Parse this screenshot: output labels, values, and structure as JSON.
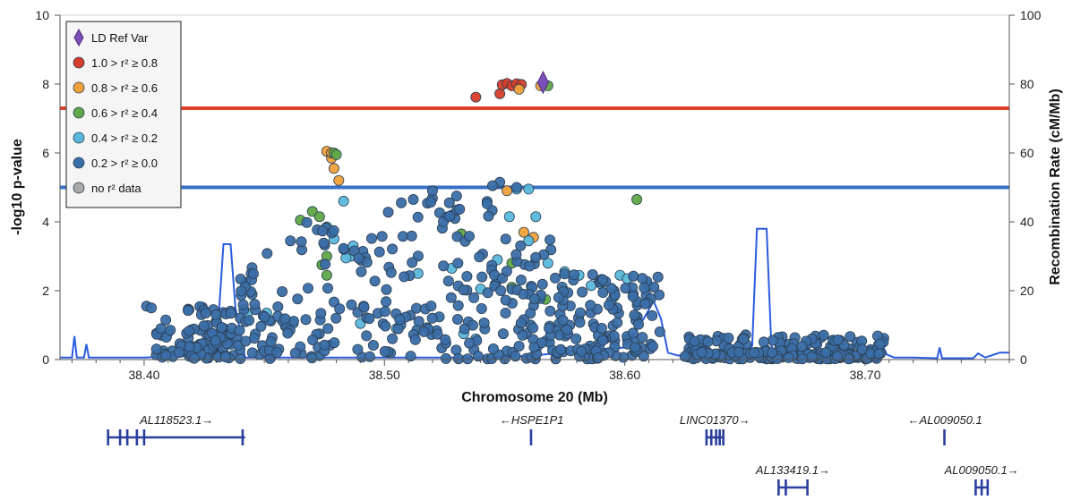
{
  "chart_data": {
    "type": "scatter",
    "xlabel": "Chromosome 20 (Mb)",
    "ylabel": "-log10 p-value",
    "y2label": "Recombination Rate (cM/Mb)",
    "xlim": [
      38.365,
      38.76
    ],
    "ylim": [
      0,
      10
    ],
    "y2lim": [
      0,
      100
    ],
    "x_ticks": [
      "38.40",
      "38.50",
      "38.60",
      "38.70"
    ],
    "x_tick_values": [
      38.4,
      38.5,
      38.6,
      38.7
    ],
    "y_ticks": [
      "0",
      "2",
      "4",
      "6",
      "8",
      "10"
    ],
    "y_tick_values": [
      0,
      2,
      4,
      6,
      8,
      10
    ],
    "y2_ticks": [
      "0",
      "20",
      "40",
      "60",
      "80",
      "100"
    ],
    "y2_tick_values": [
      0,
      20,
      40,
      60,
      80,
      100
    ],
    "thresholds": [
      {
        "value": 7.3,
        "color": "#e0402b"
      },
      {
        "value": 5.0,
        "color": "#3870c8"
      }
    ],
    "legend": {
      "placement": "top-left",
      "items": [
        {
          "label": "LD Ref Var",
          "color": "#7d4fb8",
          "shape": "diamond"
        },
        {
          "label": "1.0 > r² ≥ 0.8",
          "color": "#d43d2a",
          "shape": "circle"
        },
        {
          "label": "0.8 > r² ≥ 0.6",
          "color": "#f0a03a",
          "shape": "circle"
        },
        {
          "label": "0.6 > r² ≥ 0.4",
          "color": "#5fa847",
          "shape": "circle"
        },
        {
          "label": "0.4 > r² ≥ 0.2",
          "color": "#5ab8dc",
          "shape": "circle"
        },
        {
          "label": "0.2 > r² ≥ 0.0",
          "color": "#3a6ea8",
          "shape": "circle"
        },
        {
          "label": "no r² data",
          "color": "#a9a9a9",
          "shape": "circle"
        }
      ]
    },
    "ld_ref_var": {
      "x": 38.566,
      "y": 8.05
    },
    "series": [
      {
        "name": "1.0 > r² ≥ 0.8",
        "color": "#d43d2a",
        "points": [
          [
            38.538,
            7.62
          ],
          [
            38.548,
            7.72
          ],
          [
            38.549,
            7.98
          ],
          [
            38.551,
            8.02
          ],
          [
            38.553,
            7.95
          ],
          [
            38.555,
            8.01
          ],
          [
            38.557,
            7.99
          ]
        ]
      },
      {
        "name": "0.8 > r² ≥ 0.6",
        "color": "#f0a03a",
        "points": [
          [
            38.476,
            6.05
          ],
          [
            38.478,
            5.85
          ],
          [
            38.479,
            5.55
          ],
          [
            38.481,
            5.2
          ],
          [
            38.551,
            4.9
          ],
          [
            38.558,
            3.7
          ],
          [
            38.562,
            3.55
          ],
          [
            38.565,
            7.95
          ],
          [
            38.556,
            7.85
          ],
          [
            38.478,
            6.0
          ]
        ]
      },
      {
        "name": "0.6 > r² ≥ 0.4",
        "color": "#5fa847",
        "points": [
          [
            38.465,
            4.05
          ],
          [
            38.47,
            4.3
          ],
          [
            38.473,
            4.15
          ],
          [
            38.479,
            6.0
          ],
          [
            38.476,
            3.0
          ],
          [
            38.474,
            2.75
          ],
          [
            38.476,
            2.45
          ],
          [
            38.532,
            3.65
          ],
          [
            38.553,
            2.8
          ],
          [
            38.553,
            2.1
          ],
          [
            38.567,
            1.75
          ],
          [
            38.568,
            7.95
          ],
          [
            38.605,
            4.65
          ],
          [
            38.48,
            5.95
          ]
        ]
      },
      {
        "name": "0.4 > r² ≥ 0.2",
        "color": "#5ab8dc",
        "points": [
          [
            38.476,
            3.85
          ],
          [
            38.479,
            3.5
          ],
          [
            38.483,
            4.6
          ],
          [
            38.486,
            3.0
          ],
          [
            38.487,
            3.3
          ],
          [
            38.514,
            2.5
          ],
          [
            38.528,
            2.65
          ],
          [
            38.54,
            2.05
          ],
          [
            38.547,
            2.9
          ],
          [
            38.552,
            4.15
          ],
          [
            38.555,
            4.95
          ],
          [
            38.56,
            4.95
          ],
          [
            38.563,
            4.15
          ],
          [
            38.568,
            2.8
          ],
          [
            38.575,
            2.55
          ],
          [
            38.581,
            2.45
          ],
          [
            38.586,
            2.15
          ],
          [
            38.59,
            2.2
          ],
          [
            38.598,
            2.45
          ],
          [
            38.601,
            2.35
          ],
          [
            38.443,
            1.35
          ],
          [
            38.451,
            1.35
          ],
          [
            38.462,
            1.05
          ],
          [
            38.49,
            1.05
          ],
          [
            38.505,
            0.9
          ],
          [
            38.533,
            0.75
          ],
          [
            38.538,
            0.6
          ],
          [
            38.547,
            2.3
          ],
          [
            38.56,
            3.45
          ],
          [
            38.484,
            2.95
          ]
        ]
      },
      {
        "name": "0.2 > r² ≥ 0.0",
        "color": "#3a6ea8",
        "points": "generated"
      }
    ],
    "recombination_color": "#2a5ce0",
    "recombination_rate": [
      [
        38.365,
        0.6
      ],
      [
        38.37,
        0.6
      ],
      [
        38.371,
        6.8
      ],
      [
        38.372,
        0.6
      ],
      [
        38.375,
        0.6
      ],
      [
        38.376,
        4.5
      ],
      [
        38.377,
        0.6
      ],
      [
        38.4,
        0.6
      ],
      [
        38.43,
        1.5
      ],
      [
        38.433,
        33.5
      ],
      [
        38.436,
        33.5
      ],
      [
        38.438,
        15
      ],
      [
        38.44,
        8
      ],
      [
        38.442,
        0.6
      ],
      [
        38.47,
        0.6
      ],
      [
        38.48,
        0.6
      ],
      [
        38.5,
        0.6
      ],
      [
        38.54,
        0.6
      ],
      [
        38.56,
        1.0
      ],
      [
        38.58,
        2.5
      ],
      [
        38.6,
        3.5
      ],
      [
        38.608,
        12
      ],
      [
        38.612,
        17
      ],
      [
        38.615,
        12
      ],
      [
        38.618,
        2
      ],
      [
        38.622,
        1.2
      ],
      [
        38.63,
        0.8
      ],
      [
        38.65,
        0.8
      ],
      [
        38.653,
        4
      ],
      [
        38.655,
        38
      ],
      [
        38.659,
        38
      ],
      [
        38.661,
        4
      ],
      [
        38.663,
        0.8
      ],
      [
        38.7,
        0.8
      ],
      [
        38.703,
        1.5
      ],
      [
        38.706,
        6
      ],
      [
        38.709,
        1.5
      ],
      [
        38.712,
        0.6
      ],
      [
        38.72,
        0.6
      ],
      [
        38.73,
        0.4
      ],
      [
        38.731,
        3.5
      ],
      [
        38.732,
        0.4
      ],
      [
        38.745,
        0.4
      ],
      [
        38.747,
        1.8
      ],
      [
        38.75,
        0.6
      ],
      [
        38.756,
        2.0
      ],
      [
        38.76,
        2.0
      ]
    ]
  },
  "genes": [
    {
      "label": "AL118523.1→",
      "start": 38.385,
      "end": 38.442,
      "row": 0,
      "exons": [
        38.385,
        38.39,
        38.393,
        38.397,
        38.4,
        38.441
      ]
    },
    {
      "label": "←HSPE1P1",
      "start": 38.561,
      "end": 38.5615,
      "row": 0,
      "exons": [
        38.561
      ]
    },
    {
      "label": "LINC01370→",
      "start": 38.634,
      "end": 38.641,
      "row": 0,
      "exons": [
        38.634,
        38.636,
        38.638,
        38.6395,
        38.641
      ]
    },
    {
      "label": "←AL009050.1",
      "start": 38.733,
      "end": 38.7335,
      "row": 0,
      "exons": [
        38.733
      ]
    },
    {
      "label": "AL133419.1→",
      "start": 38.664,
      "end": 38.676,
      "row": 1,
      "exons": [
        38.664,
        38.667,
        38.676
      ]
    },
    {
      "label": "AL009050.1→",
      "start": 38.746,
      "end": 38.751,
      "row": 1,
      "exons": [
        38.746,
        38.7485,
        38.751
      ]
    }
  ]
}
